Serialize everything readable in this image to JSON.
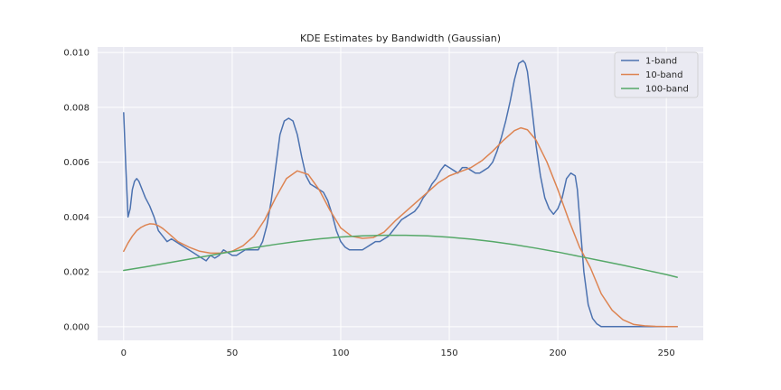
{
  "chart_data": {
    "type": "line",
    "title": "KDE Estimates by Bandwidth (Gaussian)",
    "xlabel": "",
    "ylabel": "",
    "xlim": [
      -12,
      267
    ],
    "ylim": [
      -0.0005,
      0.0102
    ],
    "xticks": [
      0,
      50,
      100,
      150,
      200,
      250
    ],
    "yticks": [
      0.0,
      0.002,
      0.004,
      0.006,
      0.008,
      0.01
    ],
    "ytick_labels": [
      "0.000",
      "0.002",
      "0.004",
      "0.006",
      "0.008",
      "0.010"
    ],
    "grid": true,
    "legend_position": "top-right",
    "series": [
      {
        "name": "1-band",
        "color": "#4c72b0",
        "x": [
          0,
          1,
          2,
          3,
          4,
          5,
          6,
          7,
          8,
          9,
          10,
          12,
          14,
          16,
          18,
          20,
          22,
          24,
          26,
          28,
          30,
          32,
          34,
          36,
          38,
          40,
          42,
          44,
          46,
          48,
          50,
          52,
          54,
          56,
          58,
          60,
          62,
          64,
          66,
          68,
          70,
          72,
          74,
          76,
          78,
          80,
          82,
          84,
          86,
          88,
          90,
          92,
          94,
          96,
          98,
          100,
          102,
          104,
          106,
          108,
          110,
          112,
          114,
          116,
          118,
          120,
          122,
          124,
          126,
          128,
          130,
          132,
          134,
          136,
          138,
          140,
          142,
          144,
          146,
          148,
          150,
          152,
          154,
          156,
          158,
          160,
          162,
          164,
          166,
          168,
          170,
          172,
          174,
          176,
          178,
          180,
          182,
          184,
          185,
          186,
          188,
          190,
          192,
          194,
          196,
          198,
          200,
          202,
          204,
          206,
          208,
          209,
          210,
          212,
          214,
          216,
          218,
          220,
          222,
          224,
          226,
          228,
          230,
          235,
          240,
          245,
          250,
          255
        ],
        "y": [
          0.0078,
          0.0058,
          0.004,
          0.0043,
          0.005,
          0.0053,
          0.0054,
          0.0053,
          0.0051,
          0.0049,
          0.0047,
          0.0044,
          0.004,
          0.0035,
          0.0033,
          0.0031,
          0.0032,
          0.0031,
          0.003,
          0.0029,
          0.0028,
          0.0027,
          0.0026,
          0.0025,
          0.0024,
          0.0026,
          0.0025,
          0.0026,
          0.0028,
          0.0027,
          0.0026,
          0.0026,
          0.0027,
          0.0028,
          0.0028,
          0.0028,
          0.0028,
          0.0031,
          0.0037,
          0.0046,
          0.0058,
          0.007,
          0.0075,
          0.0076,
          0.0075,
          0.007,
          0.0062,
          0.0055,
          0.0052,
          0.0051,
          0.005,
          0.0049,
          0.0046,
          0.0041,
          0.0035,
          0.0031,
          0.0029,
          0.0028,
          0.0028,
          0.0028,
          0.0028,
          0.0029,
          0.003,
          0.0031,
          0.0031,
          0.0032,
          0.0033,
          0.0035,
          0.0037,
          0.0039,
          0.004,
          0.0041,
          0.0042,
          0.0044,
          0.0047,
          0.0049,
          0.0052,
          0.0054,
          0.0057,
          0.0059,
          0.0058,
          0.0057,
          0.0056,
          0.0058,
          0.0058,
          0.0057,
          0.0056,
          0.0056,
          0.0057,
          0.0058,
          0.006,
          0.0064,
          0.0069,
          0.0075,
          0.0082,
          0.009,
          0.0096,
          0.0097,
          0.0096,
          0.0093,
          0.008,
          0.0066,
          0.0055,
          0.0047,
          0.0043,
          0.0041,
          0.0043,
          0.0047,
          0.0054,
          0.0056,
          0.0055,
          0.005,
          0.004,
          0.002,
          0.0008,
          0.0003,
          0.0001,
          0.0,
          0.0,
          0.0,
          0.0,
          0.0,
          0.0,
          0.0,
          0.0,
          0.0,
          0.0,
          0.0
        ]
      },
      {
        "name": "10-band",
        "color": "#dd8452",
        "x": [
          0,
          2,
          4,
          6,
          8,
          10,
          12,
          14,
          16,
          18,
          20,
          25,
          30,
          35,
          40,
          45,
          50,
          55,
          60,
          65,
          70,
          75,
          80,
          85,
          90,
          95,
          100,
          105,
          110,
          115,
          120,
          125,
          130,
          135,
          140,
          145,
          150,
          155,
          160,
          165,
          170,
          175,
          180,
          183,
          186,
          190,
          195,
          200,
          205,
          210,
          215,
          220,
          225,
          230,
          235,
          240,
          245,
          250,
          255
        ],
        "y": [
          0.00275,
          0.00305,
          0.0033,
          0.0035,
          0.00362,
          0.0037,
          0.00375,
          0.00374,
          0.00368,
          0.00358,
          0.00345,
          0.0031,
          0.0029,
          0.00275,
          0.00268,
          0.00268,
          0.00275,
          0.00295,
          0.0033,
          0.0039,
          0.0047,
          0.0054,
          0.00568,
          0.00555,
          0.005,
          0.00425,
          0.0036,
          0.0033,
          0.00322,
          0.00325,
          0.00345,
          0.00385,
          0.0042,
          0.00455,
          0.0049,
          0.00525,
          0.0055,
          0.00565,
          0.0058,
          0.00605,
          0.0064,
          0.0068,
          0.00715,
          0.00725,
          0.00718,
          0.0068,
          0.006,
          0.005,
          0.0039,
          0.0029,
          0.00215,
          0.0012,
          0.0006,
          0.00025,
          8e-05,
          3e-05,
          1e-05,
          0.0,
          0.0
        ]
      },
      {
        "name": "100-band",
        "color": "#55a868",
        "x": [
          0,
          10,
          20,
          30,
          40,
          50,
          60,
          70,
          80,
          90,
          100,
          110,
          120,
          130,
          140,
          150,
          160,
          170,
          180,
          190,
          200,
          210,
          220,
          230,
          240,
          250,
          255
        ],
        "y": [
          0.00205,
          0.00218,
          0.00232,
          0.00246,
          0.0026,
          0.00274,
          0.00288,
          0.003,
          0.00311,
          0.0032,
          0.00327,
          0.00331,
          0.00333,
          0.00333,
          0.00331,
          0.00326,
          0.00319,
          0.0031,
          0.00299,
          0.00286,
          0.00272,
          0.00256,
          0.0024,
          0.00224,
          0.00207,
          0.0019,
          0.0018
        ]
      }
    ]
  }
}
